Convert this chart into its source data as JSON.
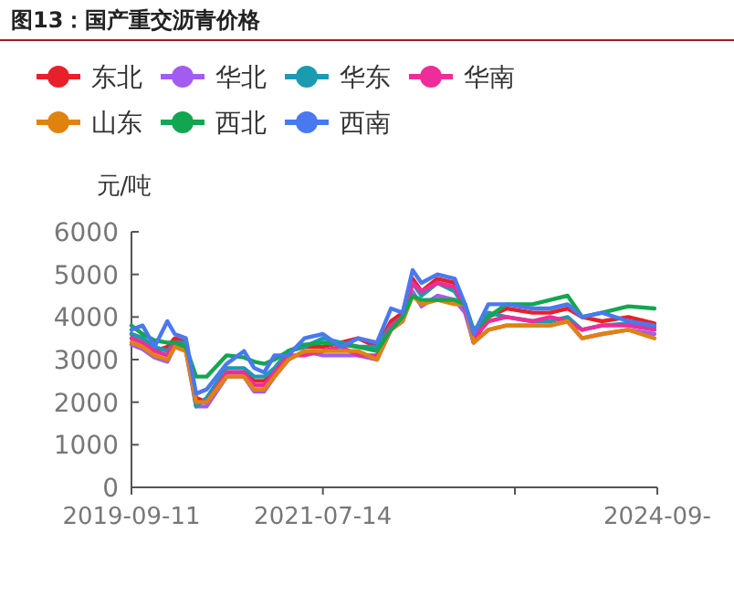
{
  "chart_data": {
    "type": "line",
    "title": "图13：国产重交沥青价格",
    "ylabel": "元/吨",
    "legend": "top",
    "grid": false,
    "x": [
      "2019-09-11",
      "2019-10-20",
      "2019-12-01",
      "2020-01-15",
      "2020-02-10",
      "2020-03-20",
      "2020-04-25",
      "2020-06-01",
      "2020-08-10",
      "2020-10-10",
      "2020-11-15",
      "2020-12-20",
      "2021-01-25",
      "2021-03-15",
      "2021-05-10",
      "2021-07-14",
      "2021-09-15",
      "2021-11-15",
      "2022-01-20",
      "2022-03-10",
      "2022-04-20",
      "2022-05-25",
      "2022-06-25",
      "2022-08-20",
      "2022-10-20",
      "2022-11-25",
      "2022-12-25",
      "2023-02-15",
      "2023-04-20",
      "2023-07-20",
      "2023-09-20",
      "2023-11-20",
      "2024-01-10",
      "2024-03-20",
      "2024-06-20",
      "2024-09-20"
    ],
    "xlim": [
      "2019-09-11",
      "2024-09-30"
    ],
    "xticks": [
      {
        "value": "2019-09-11",
        "label": "2019-09-11"
      },
      {
        "value": "2021-07-14",
        "label": "2021-07-14"
      },
      {
        "value": "2023-05-19",
        "label": null
      },
      {
        "value": "2024-09-30",
        "label": "2024-09-"
      }
    ],
    "ylim": [
      0,
      6000
    ],
    "yticks": [
      0,
      1000,
      2000,
      3000,
      4000,
      5000,
      6000
    ],
    "series": [
      {
        "name": "东北",
        "color": "#e8202a",
        "values": [
          3600,
          3500,
          3200,
          3300,
          3500,
          3400,
          2100,
          2000,
          2700,
          2700,
          2500,
          2500,
          2700,
          3200,
          3300,
          3300,
          3400,
          3500,
          3300,
          3900,
          4100,
          4900,
          4600,
          4900,
          4800,
          4200,
          3400,
          4000,
          4200,
          4100,
          4100,
          4200,
          4000,
          3900,
          4000,
          3850
        ]
      },
      {
        "name": "华北",
        "color": "#a35cf0",
        "values": [
          3350,
          3250,
          3050,
          2950,
          3300,
          3200,
          1900,
          1900,
          2600,
          2600,
          2250,
          2250,
          2600,
          3000,
          3200,
          3100,
          3100,
          3100,
          3000,
          3700,
          3900,
          4600,
          4250,
          4500,
          4400,
          4100,
          3400,
          3700,
          3800,
          3800,
          3800,
          3900,
          3500,
          3600,
          3700,
          3600
        ]
      },
      {
        "name": "华东",
        "color": "#1a9bb0",
        "values": [
          3600,
          3500,
          3300,
          3200,
          3400,
          3400,
          1900,
          2100,
          2800,
          2800,
          2600,
          2600,
          2800,
          3200,
          3300,
          3500,
          3400,
          3300,
          3300,
          3800,
          4000,
          4800,
          4500,
          4800,
          4600,
          4200,
          3600,
          4100,
          4000,
          3900,
          3900,
          4000,
          3700,
          3800,
          3850,
          3750
        ]
      },
      {
        "name": "华南",
        "color": "#ee2d9a",
        "values": [
          3500,
          3400,
          3200,
          3100,
          3400,
          3300,
          2000,
          2000,
          2700,
          2700,
          2400,
          2400,
          2700,
          3100,
          3100,
          3200,
          3300,
          3100,
          3100,
          3800,
          4000,
          4800,
          4600,
          4800,
          4700,
          4200,
          3500,
          3900,
          4000,
          3900,
          4000,
          3900,
          3700,
          3800,
          3800,
          3700
        ]
      },
      {
        "name": "山东",
        "color": "#e0830e",
        "values": [
          3400,
          3300,
          3100,
          3000,
          3300,
          3200,
          2000,
          2000,
          2600,
          2600,
          2300,
          2300,
          2600,
          3000,
          3200,
          3200,
          3200,
          3200,
          3000,
          3700,
          3900,
          4500,
          4300,
          4400,
          4300,
          4300,
          3400,
          3700,
          3800,
          3800,
          3800,
          3900,
          3500,
          3600,
          3700,
          3500
        ]
      },
      {
        "name": "西北",
        "color": "#13a650",
        "values": [
          3800,
          3600,
          3450,
          3400,
          3400,
          3300,
          2600,
          2600,
          3100,
          3050,
          2950,
          2900,
          3000,
          3200,
          3350,
          3400,
          3350,
          3300,
          3200,
          3700,
          4000,
          4500,
          4400,
          4400,
          4400,
          4300,
          3700,
          4000,
          4300,
          4300,
          4400,
          4500,
          4000,
          4100,
          4250,
          4200
        ]
      },
      {
        "name": "西南",
        "color": "#4a78f0",
        "values": [
          3700,
          3800,
          3300,
          3900,
          3600,
          3500,
          2200,
          2300,
          2900,
          3200,
          2800,
          2700,
          3100,
          3100,
          3500,
          3600,
          3300,
          3500,
          3400,
          4200,
          4100,
          5100,
          4800,
          5000,
          4900,
          4300,
          3600,
          4300,
          4300,
          4200,
          4200,
          4300,
          4000,
          4100,
          3900,
          3800
        ]
      }
    ]
  }
}
